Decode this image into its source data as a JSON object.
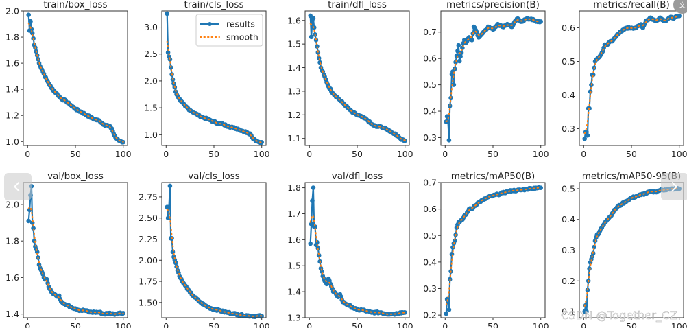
{
  "chart_data": [
    {
      "type": "line",
      "title": "train/box_loss",
      "xlim": [
        0,
        100
      ],
      "ylim": [
        0.97,
        2.0
      ],
      "xticks": [
        0,
        50,
        100
      ],
      "yticks": [
        1.0,
        1.2,
        1.4,
        1.6,
        1.8,
        2.0
      ],
      "ytick_labels": [
        "1.0",
        "1.2",
        "1.4",
        "1.6",
        "1.8",
        "2.0"
      ],
      "series": [
        {
          "name": "results",
          "x_keys": [
            1,
            2,
            3,
            4,
            5,
            6,
            7,
            8,
            10,
            12,
            15,
            20,
            25,
            30,
            35,
            40,
            45,
            50,
            55,
            60,
            65,
            70,
            75,
            80,
            85,
            88,
            90,
            92,
            95,
            98,
            100
          ],
          "values": [
            1.97,
            1.85,
            1.92,
            1.86,
            1.83,
            1.79,
            1.74,
            1.72,
            1.66,
            1.6,
            1.55,
            1.47,
            1.41,
            1.37,
            1.33,
            1.31,
            1.28,
            1.25,
            1.23,
            1.21,
            1.19,
            1.17,
            1.16,
            1.13,
            1.12,
            1.1,
            1.06,
            1.03,
            1.01,
            1.0,
            0.995
          ]
        }
      ],
      "legend": false
    },
    {
      "type": "line",
      "title": "train/cls_loss",
      "xlim": [
        0,
        100
      ],
      "ylim": [
        0.8,
        3.3
      ],
      "xticks": [
        0,
        50,
        100
      ],
      "yticks": [
        1.0,
        1.5,
        2.0,
        2.5,
        3.0
      ],
      "ytick_labels": [
        "1.0",
        "1.5",
        "2.0",
        "2.5",
        "3.0"
      ],
      "series": [
        {
          "name": "results",
          "x_keys": [
            1,
            2,
            3,
            4,
            5,
            6,
            8,
            10,
            12,
            15,
            20,
            25,
            30,
            35,
            40,
            45,
            50,
            55,
            60,
            65,
            70,
            75,
            80,
            85,
            88,
            90,
            92,
            95,
            98,
            100
          ],
          "values": [
            3.25,
            2.53,
            2.45,
            2.4,
            2.25,
            2.12,
            1.95,
            1.8,
            1.72,
            1.63,
            1.53,
            1.46,
            1.4,
            1.35,
            1.31,
            1.28,
            1.24,
            1.21,
            1.19,
            1.16,
            1.13,
            1.11,
            1.07,
            1.04,
            1.02,
            0.95,
            0.92,
            0.88,
            0.86,
            0.86
          ]
        }
      ],
      "legend": true,
      "legend_entries": [
        "results",
        "smooth"
      ],
      "legend_loc": "upper right"
    },
    {
      "type": "line",
      "title": "train/dfl_loss",
      "xlim": [
        0,
        100
      ],
      "ylim": [
        1.07,
        1.64
      ],
      "xticks": [
        0,
        50,
        100
      ],
      "yticks": [
        1.1,
        1.2,
        1.3,
        1.4,
        1.5,
        1.6
      ],
      "ytick_labels": [
        "1.1",
        "1.2",
        "1.3",
        "1.4",
        "1.5",
        "1.6"
      ],
      "series": [
        {
          "name": "results",
          "x_keys": [
            1,
            2,
            3,
            4,
            5,
            6,
            8,
            10,
            12,
            15,
            20,
            25,
            30,
            35,
            40,
            45,
            50,
            55,
            60,
            65,
            70,
            75,
            80,
            85,
            88,
            90,
            92,
            95,
            98,
            100
          ],
          "values": [
            1.62,
            1.53,
            1.6,
            1.61,
            1.57,
            1.54,
            1.49,
            1.44,
            1.4,
            1.37,
            1.32,
            1.29,
            1.27,
            1.25,
            1.23,
            1.21,
            1.2,
            1.19,
            1.18,
            1.16,
            1.15,
            1.15,
            1.14,
            1.13,
            1.12,
            1.12,
            1.11,
            1.1,
            1.095,
            1.09
          ]
        }
      ],
      "legend": false
    },
    {
      "type": "line",
      "title": "metrics/precision(B)",
      "xlim": [
        0,
        100
      ],
      "ylim": [
        0.27,
        0.78
      ],
      "xticks": [
        0,
        50,
        100
      ],
      "yticks": [
        0.3,
        0.4,
        0.5,
        0.6,
        0.7
      ],
      "ytick_labels": [
        "0.3",
        "0.4",
        "0.5",
        "0.6",
        "0.7"
      ],
      "series": [
        {
          "name": "results",
          "x_keys": [
            1,
            2,
            3,
            4,
            5,
            6,
            7,
            8,
            9,
            10,
            12,
            14,
            15,
            18,
            20,
            22,
            25,
            28,
            30,
            33,
            35,
            40,
            45,
            50,
            55,
            60,
            65,
            70,
            75,
            80,
            85,
            90,
            95,
            100
          ],
          "values": [
            0.36,
            0.38,
            0.36,
            0.29,
            0.42,
            0.45,
            0.54,
            0.55,
            0.5,
            0.56,
            0.61,
            0.65,
            0.59,
            0.64,
            0.67,
            0.66,
            0.68,
            0.67,
            0.72,
            0.7,
            0.68,
            0.7,
            0.72,
            0.71,
            0.73,
            0.72,
            0.73,
            0.72,
            0.75,
            0.74,
            0.75,
            0.75,
            0.74,
            0.74
          ]
        }
      ],
      "legend": false
    },
    {
      "type": "line",
      "title": "metrics/recall(B)",
      "xlim": [
        0,
        100
      ],
      "ylim": [
        0.25,
        0.65
      ],
      "xticks": [
        0,
        50,
        100
      ],
      "yticks": [
        0.3,
        0.4,
        0.5,
        0.6
      ],
      "ytick_labels": [
        "0.3",
        "0.4",
        "0.5",
        "0.6"
      ],
      "series": [
        {
          "name": "results",
          "x_keys": [
            1,
            2,
            3,
            4,
            5,
            6,
            7,
            8,
            9,
            10,
            12,
            15,
            18,
            20,
            22,
            25,
            28,
            30,
            35,
            40,
            45,
            50,
            55,
            60,
            62,
            65,
            70,
            75,
            80,
            85,
            90,
            95,
            100
          ],
          "values": [
            0.27,
            0.29,
            0.29,
            0.28,
            0.36,
            0.36,
            0.41,
            0.43,
            0.46,
            0.46,
            0.5,
            0.51,
            0.52,
            0.53,
            0.55,
            0.55,
            0.56,
            0.56,
            0.58,
            0.59,
            0.6,
            0.6,
            0.6,
            0.61,
            0.6,
            0.62,
            0.63,
            0.62,
            0.63,
            0.62,
            0.63,
            0.63,
            0.635
          ]
        }
      ],
      "legend": false
    },
    {
      "type": "line",
      "title": "val/box_loss",
      "xlim": [
        0,
        100
      ],
      "ylim": [
        1.38,
        2.12
      ],
      "xticks": [
        0,
        50,
        100
      ],
      "yticks": [
        1.4,
        1.6,
        1.8,
        2.0
      ],
      "ytick_labels": [
        "1.4",
        "1.6",
        "1.8",
        "2.0"
      ],
      "series": [
        {
          "name": "results",
          "x_keys": [
            1,
            2,
            3,
            4,
            5,
            6,
            7,
            8,
            10,
            12,
            15,
            18,
            20,
            22,
            25,
            30,
            33,
            35,
            40,
            45,
            50,
            55,
            60,
            65,
            70,
            75,
            80,
            85,
            90,
            95,
            100
          ],
          "values": [
            1.91,
            1.97,
            2.05,
            2.1,
            1.9,
            1.87,
            1.8,
            1.77,
            1.74,
            1.67,
            1.63,
            1.59,
            1.59,
            1.55,
            1.52,
            1.5,
            1.5,
            1.47,
            1.45,
            1.44,
            1.43,
            1.42,
            1.42,
            1.41,
            1.41,
            1.41,
            1.4,
            1.405,
            1.4,
            1.405,
            1.405
          ]
        }
      ],
      "legend": false
    },
    {
      "type": "line",
      "title": "val/cls_loss",
      "xlim": [
        0,
        100
      ],
      "ylim": [
        1.32,
        2.92
      ],
      "xticks": [
        0,
        50,
        100
      ],
      "yticks": [
        1.5,
        1.75,
        2.0,
        2.25,
        2.5,
        2.75
      ],
      "ytick_labels": [
        "1.50",
        "1.75",
        "2.00",
        "2.25",
        "2.50",
        "2.75"
      ],
      "series": [
        {
          "name": "results",
          "x_keys": [
            1,
            2,
            3,
            4,
            5,
            6,
            7,
            8,
            10,
            12,
            15,
            18,
            20,
            25,
            30,
            35,
            40,
            45,
            50,
            55,
            60,
            65,
            70,
            75,
            80,
            85,
            90,
            95,
            100
          ],
          "values": [
            2.63,
            2.5,
            2.63,
            2.88,
            2.26,
            2.26,
            2.1,
            2.04,
            1.97,
            1.88,
            1.79,
            1.73,
            1.7,
            1.62,
            1.56,
            1.51,
            1.47,
            1.44,
            1.42,
            1.41,
            1.39,
            1.38,
            1.37,
            1.36,
            1.35,
            1.345,
            1.34,
            1.34,
            1.34
          ]
        }
      ],
      "legend": false
    },
    {
      "type": "line",
      "title": "val/dfl_loss",
      "xlim": [
        0,
        100
      ],
      "ylim": [
        1.3,
        1.82
      ],
      "xticks": [
        0,
        50,
        100
      ],
      "yticks": [
        1.3,
        1.4,
        1.5,
        1.6,
        1.7,
        1.8
      ],
      "ytick_labels": [
        "1.3",
        "1.4",
        "1.5",
        "1.6",
        "1.7",
        "1.8"
      ],
      "series": [
        {
          "name": "results",
          "x_keys": [
            1,
            2,
            3,
            4,
            5,
            6,
            7,
            8,
            10,
            12,
            15,
            18,
            20,
            22,
            25,
            28,
            30,
            32,
            35,
            40,
            45,
            50,
            55,
            60,
            65,
            70,
            75,
            80,
            85,
            90,
            95,
            100
          ],
          "values": [
            1.585,
            1.66,
            1.75,
            1.8,
            1.65,
            1.65,
            1.58,
            1.59,
            1.54,
            1.49,
            1.45,
            1.43,
            1.45,
            1.43,
            1.4,
            1.39,
            1.38,
            1.39,
            1.36,
            1.35,
            1.34,
            1.33,
            1.33,
            1.325,
            1.32,
            1.32,
            1.32,
            1.315,
            1.315,
            1.315,
            1.32,
            1.32
          ]
        }
      ],
      "legend": false
    },
    {
      "type": "line",
      "title": "metrics/mAP50(B)",
      "xlim": [
        0,
        100
      ],
      "ylim": [
        0.19,
        0.7
      ],
      "xticks": [
        0,
        50,
        100
      ],
      "yticks": [
        0.2,
        0.3,
        0.4,
        0.5,
        0.6,
        0.7
      ],
      "ytick_labels": [
        "0.2",
        "0.3",
        "0.4",
        "0.5",
        "0.6",
        "0.7"
      ],
      "series": [
        {
          "name": "results",
          "x_keys": [
            1,
            2,
            3,
            4,
            5,
            6,
            7,
            8,
            9,
            10,
            12,
            14,
            15,
            18,
            20,
            22,
            25,
            28,
            30,
            35,
            40,
            45,
            50,
            55,
            60,
            65,
            70,
            75,
            80,
            85,
            90,
            95,
            100
          ],
          "values": [
            0.205,
            0.26,
            0.25,
            0.22,
            0.335,
            0.365,
            0.43,
            0.455,
            0.47,
            0.48,
            0.53,
            0.55,
            0.55,
            0.56,
            0.575,
            0.58,
            0.6,
            0.6,
            0.61,
            0.625,
            0.635,
            0.645,
            0.65,
            0.655,
            0.66,
            0.665,
            0.67,
            0.67,
            0.672,
            0.675,
            0.678,
            0.68,
            0.68
          ]
        }
      ],
      "legend": false
    },
    {
      "type": "line",
      "title": "metrics/mAP50-95(B)",
      "xlim": [
        0,
        100
      ],
      "ylim": [
        0.08,
        0.52
      ],
      "xticks": [
        0,
        50,
        100
      ],
      "yticks": [
        0.1,
        0.2,
        0.3,
        0.4,
        0.5
      ],
      "ytick_labels": [
        "0.1",
        "0.2",
        "0.3",
        "0.4",
        "0.5"
      ],
      "series": [
        {
          "name": "results",
          "x_keys": [
            1,
            2,
            3,
            4,
            5,
            6,
            7,
            8,
            9,
            10,
            12,
            14,
            15,
            18,
            20,
            22,
            25,
            28,
            30,
            35,
            40,
            45,
            50,
            55,
            60,
            65,
            70,
            75,
            80,
            85,
            90,
            95,
            100
          ],
          "values": [
            0.1,
            0.12,
            0.1,
            0.17,
            0.2,
            0.24,
            0.26,
            0.27,
            0.28,
            0.29,
            0.33,
            0.35,
            0.35,
            0.37,
            0.38,
            0.39,
            0.4,
            0.41,
            0.42,
            0.44,
            0.45,
            0.46,
            0.47,
            0.475,
            0.48,
            0.485,
            0.49,
            0.49,
            0.495,
            0.497,
            0.498,
            0.5,
            0.5
          ]
        }
      ],
      "legend": false
    }
  ],
  "overlay": {
    "watermark": "CSDN @Together_CZ",
    "translate_icon": "文"
  },
  "colors": {
    "results": "#1f77b4",
    "smooth": "#ff7f0e",
    "axis": "#333333",
    "text": "#222222"
  }
}
